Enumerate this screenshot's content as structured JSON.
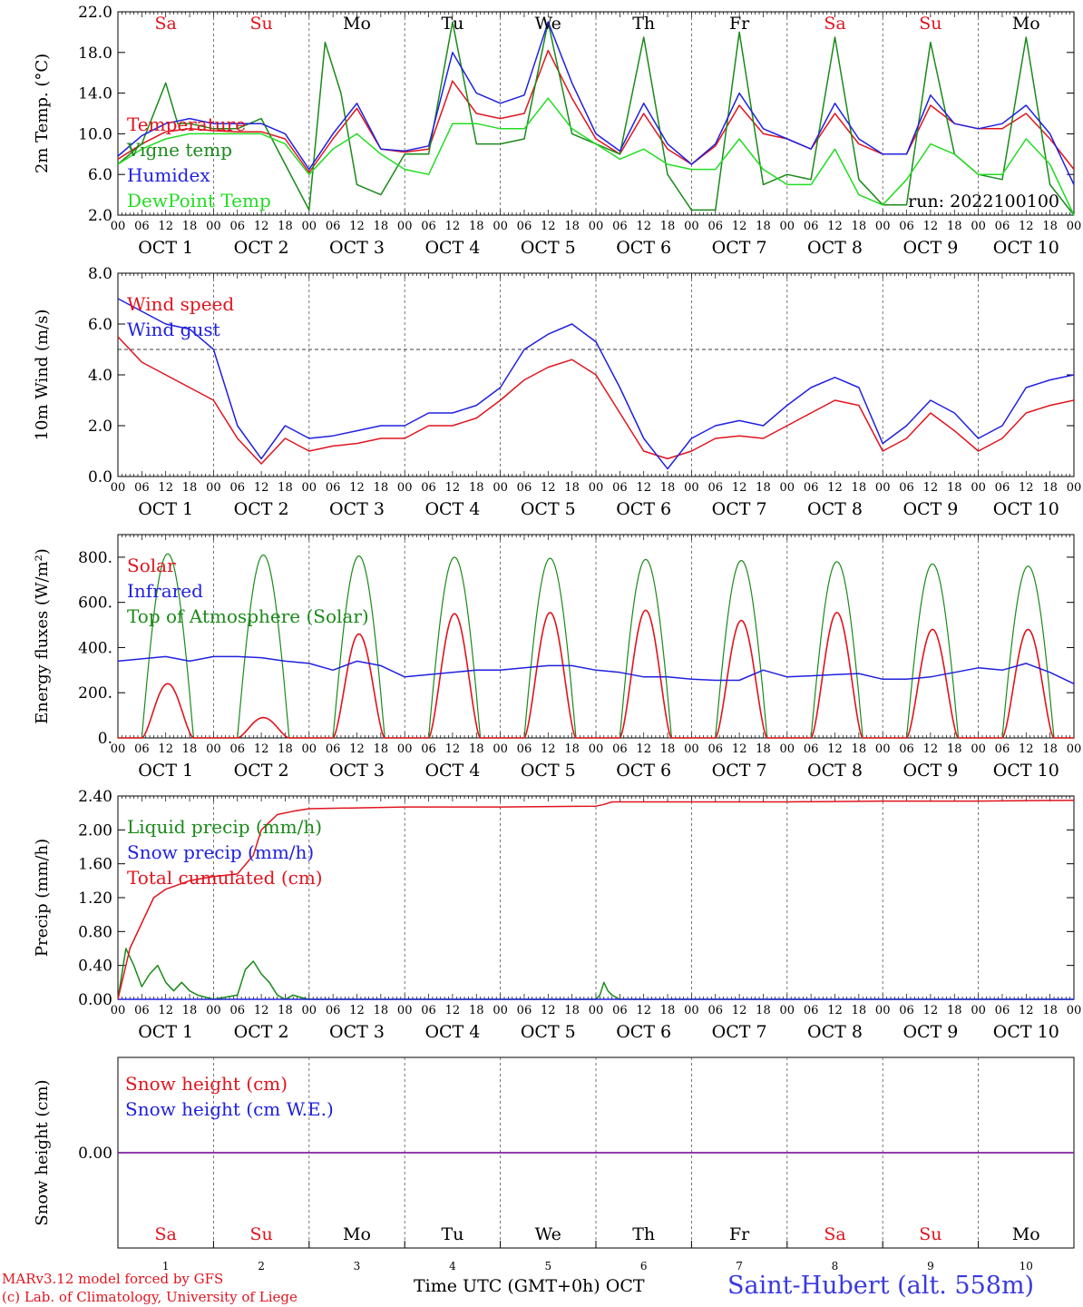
{
  "station_label": "Saint-Hubert (alt. 558m)",
  "run_label": "run: 2022100100",
  "credits": [
    "MARv3.12 model forced by GFS",
    "(c) Lab. of Climatology, University of Liege"
  ],
  "xaxis_title": "Time UTC (GMT+0h)",
  "month_label": "OCT",
  "colors": {
    "red": "#e0141e",
    "green": "#1a8a1a",
    "blue": "#2020e0",
    "lightgreen": "#22dd22",
    "purple": "#8020a0",
    "grid": "#555555"
  },
  "days": [
    {
      "num": "1",
      "date": "OCT  1",
      "dow": "Sa",
      "weekend": true
    },
    {
      "num": "2",
      "date": "OCT  2",
      "dow": "Su",
      "weekend": true
    },
    {
      "num": "3",
      "date": "OCT  3",
      "dow": "Mo",
      "weekend": false
    },
    {
      "num": "4",
      "date": "OCT  4",
      "dow": "Tu",
      "weekend": false
    },
    {
      "num": "5",
      "date": "OCT  5",
      "dow": "We",
      "weekend": false
    },
    {
      "num": "6",
      "date": "OCT  6",
      "dow": "Th",
      "weekend": false
    },
    {
      "num": "7",
      "date": "OCT  7",
      "dow": "Fr",
      "weekend": false
    },
    {
      "num": "8",
      "date": "OCT  8",
      "dow": "Sa",
      "weekend": true
    },
    {
      "num": "9",
      "date": "OCT  9",
      "dow": "Su",
      "weekend": true
    },
    {
      "num": "10",
      "date": "OCT 10",
      "dow": "Mo",
      "weekend": false
    }
  ],
  "hour_ticks": [
    "00",
    "06",
    "12",
    "18"
  ],
  "chart_data": [
    {
      "type": "line",
      "ylabel": "2m Temp. (°C)",
      "ylim": [
        2.0,
        22.0
      ],
      "yticks": [
        "2.0",
        "6.0",
        "10.0",
        "14.0",
        "18.0",
        "22.0"
      ],
      "x_unit": "hours since OCT 1 00 UTC",
      "series": [
        {
          "name": "Temperature",
          "color": "red",
          "x": [
            0,
            6,
            12,
            18,
            24,
            30,
            36,
            42,
            48,
            54,
            60,
            66,
            72,
            78,
            84,
            90,
            96,
            102,
            108,
            114,
            120,
            126,
            132,
            138,
            144,
            150,
            156,
            162,
            168,
            174,
            180,
            186,
            192,
            198,
            204,
            210,
            216,
            222,
            228,
            234,
            240
          ],
          "y": [
            7.5,
            9.0,
            10.2,
            10.5,
            10.3,
            10.2,
            10.2,
            9.5,
            6.2,
            9.5,
            12.5,
            8.5,
            8.2,
            8.5,
            15.2,
            12.0,
            11.5,
            12.0,
            18.2,
            13.5,
            9.5,
            8.0,
            12.0,
            8.5,
            7.0,
            8.8,
            12.8,
            10.0,
            9.5,
            8.5,
            12.0,
            9.0,
            8.0,
            8.0,
            12.8,
            11.0,
            10.5,
            10.5,
            12.0,
            9.5,
            6.5
          ]
        },
        {
          "name": "Vigne temp",
          "color": "green",
          "x": [
            0,
            6,
            10,
            12,
            15,
            18,
            24,
            30,
            36,
            42,
            48,
            52,
            56,
            60,
            66,
            72,
            78,
            84,
            90,
            96,
            102,
            108,
            114,
            120,
            126,
            132,
            138,
            144,
            150,
            156,
            162,
            168,
            174,
            180,
            186,
            192,
            198,
            204,
            210,
            216,
            222,
            228,
            234,
            240
          ],
          "y": [
            7.0,
            9.0,
            13.0,
            15.0,
            11.0,
            11.0,
            10.5,
            10.5,
            11.5,
            7.0,
            2.5,
            19.0,
            14.0,
            5.0,
            4.0,
            8.0,
            8.0,
            21.0,
            9.0,
            9.0,
            9.5,
            21.0,
            10.0,
            9.0,
            8.0,
            19.5,
            6.0,
            2.5,
            2.5,
            20.0,
            5.0,
            6.0,
            5.5,
            19.5,
            5.5,
            3.0,
            3.0,
            19.0,
            8.0,
            6.0,
            5.5,
            19.5,
            5.0,
            2.0
          ]
        },
        {
          "name": "Humidex",
          "color": "blue",
          "x": [
            0,
            6,
            12,
            18,
            24,
            30,
            36,
            42,
            48,
            54,
            60,
            66,
            72,
            78,
            84,
            90,
            96,
            102,
            108,
            114,
            120,
            126,
            132,
            138,
            144,
            150,
            156,
            162,
            168,
            174,
            180,
            186,
            192,
            198,
            204,
            210,
            216,
            222,
            228,
            234,
            240
          ],
          "y": [
            7.8,
            9.8,
            11.0,
            11.5,
            11.0,
            11.0,
            11.0,
            10.0,
            6.5,
            10.0,
            13.0,
            8.5,
            8.3,
            8.8,
            18.0,
            14.0,
            13.0,
            13.8,
            21.0,
            15.0,
            10.0,
            8.3,
            13.0,
            9.0,
            7.0,
            9.0,
            14.0,
            10.5,
            9.5,
            8.5,
            13.0,
            9.5,
            8.0,
            8.0,
            13.8,
            11.0,
            10.5,
            11.0,
            12.8,
            10.0,
            5.0
          ]
        },
        {
          "name": "DewPoint Temp",
          "color": "lightgreen",
          "x": [
            0,
            6,
            12,
            18,
            24,
            30,
            36,
            42,
            48,
            54,
            60,
            66,
            72,
            78,
            84,
            90,
            96,
            102,
            108,
            114,
            120,
            126,
            132,
            138,
            144,
            150,
            156,
            162,
            168,
            174,
            180,
            186,
            192,
            198,
            204,
            210,
            216,
            222,
            228,
            234,
            240
          ],
          "y": [
            7.0,
            8.5,
            9.5,
            10.0,
            10.0,
            10.0,
            10.0,
            9.0,
            6.0,
            8.5,
            10.0,
            8.0,
            6.5,
            6.0,
            11.0,
            11.0,
            10.5,
            10.5,
            13.5,
            10.5,
            9.0,
            7.5,
            8.5,
            7.0,
            6.5,
            6.5,
            9.5,
            6.5,
            5.0,
            5.0,
            8.5,
            4.0,
            3.0,
            5.5,
            9.0,
            8.0,
            6.0,
            6.0,
            9.5,
            7.0,
            2.0
          ]
        }
      ]
    },
    {
      "type": "line",
      "ylabel": "10m Wind (m/s)",
      "ylim": [
        0.0,
        8.0
      ],
      "yticks": [
        "0.0",
        "2.0",
        "4.0",
        "6.0",
        "8.0"
      ],
      "reference_line": 5.0,
      "series": [
        {
          "name": "Wind speed",
          "color": "red",
          "x": [
            0,
            6,
            12,
            18,
            24,
            30,
            36,
            42,
            48,
            54,
            60,
            66,
            72,
            78,
            84,
            90,
            96,
            102,
            108,
            114,
            120,
            126,
            132,
            138,
            144,
            150,
            156,
            162,
            168,
            174,
            180,
            186,
            192,
            198,
            204,
            210,
            216,
            222,
            228,
            234,
            240
          ],
          "y": [
            5.5,
            4.5,
            4.0,
            3.5,
            3.0,
            1.5,
            0.5,
            1.5,
            1.0,
            1.2,
            1.3,
            1.5,
            1.5,
            2.0,
            2.0,
            2.3,
            3.0,
            3.8,
            4.3,
            4.6,
            4.0,
            2.5,
            1.0,
            0.7,
            1.0,
            1.5,
            1.6,
            1.5,
            2.0,
            2.5,
            3.0,
            2.8,
            1.0,
            1.5,
            2.5,
            1.8,
            1.0,
            1.5,
            2.5,
            2.8,
            3.0
          ]
        },
        {
          "name": "Wind gust",
          "color": "blue",
          "x": [
            0,
            6,
            12,
            18,
            24,
            30,
            36,
            42,
            48,
            54,
            60,
            66,
            72,
            78,
            84,
            90,
            96,
            102,
            108,
            114,
            120,
            126,
            132,
            138,
            144,
            150,
            156,
            162,
            168,
            174,
            180,
            186,
            192,
            198,
            204,
            210,
            216,
            222,
            228,
            234,
            240
          ],
          "y": [
            7.0,
            6.5,
            6.0,
            5.8,
            5.0,
            2.0,
            0.7,
            2.0,
            1.5,
            1.6,
            1.8,
            2.0,
            2.0,
            2.5,
            2.5,
            2.8,
            3.5,
            5.0,
            5.6,
            6.0,
            5.3,
            3.5,
            1.5,
            0.3,
            1.5,
            2.0,
            2.2,
            2.0,
            2.8,
            3.5,
            3.9,
            3.5,
            1.3,
            2.0,
            3.0,
            2.5,
            1.5,
            2.0,
            3.5,
            3.8,
            4.0
          ]
        }
      ]
    },
    {
      "type": "line",
      "ylabel": "Energy fluxes (W/m²)",
      "ylim": [
        0,
        900
      ],
      "yticks": [
        "0.",
        "200.",
        "400.",
        "600.",
        "800."
      ],
      "diurnal_solar": {
        "sunrise_h": 6,
        "sunset_h": 19,
        "toa_peak": [
          815,
          810,
          805,
          800,
          795,
          790,
          785,
          780,
          770,
          760
        ],
        "solar_peak": [
          240,
          90,
          460,
          550,
          555,
          565,
          520,
          555,
          480,
          480
        ]
      },
      "series": [
        {
          "name": "Solar",
          "color": "red",
          "derived_from": "diurnal_solar.solar_peak"
        },
        {
          "name": "Infrared",
          "color": "blue",
          "x": [
            0,
            6,
            12,
            18,
            24,
            30,
            36,
            42,
            48,
            54,
            60,
            66,
            72,
            78,
            84,
            90,
            96,
            102,
            108,
            114,
            120,
            126,
            132,
            138,
            144,
            150,
            156,
            162,
            168,
            174,
            180,
            186,
            192,
            198,
            204,
            210,
            216,
            222,
            228,
            234,
            240
          ],
          "y": [
            340,
            350,
            360,
            340,
            360,
            360,
            355,
            340,
            330,
            300,
            340,
            320,
            270,
            280,
            290,
            300,
            300,
            310,
            320,
            320,
            300,
            290,
            270,
            270,
            260,
            255,
            255,
            300,
            270,
            275,
            280,
            285,
            260,
            260,
            270,
            290,
            310,
            300,
            330,
            290,
            240
          ]
        },
        {
          "name": "Top of Atmosphere (Solar)",
          "color": "green",
          "derived_from": "diurnal_solar.toa_peak"
        }
      ]
    },
    {
      "type": "line",
      "ylabel": "Precip (mm/h)",
      "ylim": [
        0.0,
        2.4
      ],
      "yticks": [
        "0.00",
        "0.40",
        "0.80",
        "1.20",
        "1.60",
        "2.00",
        "2.40"
      ],
      "series": [
        {
          "name": "Liquid precip (mm/h)",
          "color": "green",
          "x": [
            0,
            2,
            4,
            6,
            8,
            10,
            12,
            14,
            16,
            18,
            20,
            24,
            30,
            32,
            34,
            36,
            38,
            40,
            42,
            44,
            46,
            48,
            120,
            121,
            122,
            123,
            124,
            126,
            240
          ],
          "y": [
            0.0,
            0.6,
            0.4,
            0.15,
            0.3,
            0.4,
            0.2,
            0.1,
            0.2,
            0.1,
            0.05,
            0.0,
            0.05,
            0.35,
            0.45,
            0.3,
            0.2,
            0.05,
            0.0,
            0.05,
            0.02,
            0.0,
            0.0,
            0.05,
            0.2,
            0.1,
            0.05,
            0.0,
            0.0
          ]
        },
        {
          "name": "Snow precip (mm/h)",
          "color": "blue",
          "x": [
            0,
            240
          ],
          "y": [
            0.0,
            0.0
          ]
        },
        {
          "name": "Total cumulated (cm)",
          "color": "red",
          "x": [
            0,
            3,
            6,
            9,
            12,
            18,
            24,
            30,
            34,
            36,
            40,
            44,
            48,
            60,
            72,
            96,
            120,
            122,
            124,
            144,
            168,
            192,
            216,
            240
          ],
          "y": [
            0.0,
            0.6,
            0.9,
            1.2,
            1.3,
            1.4,
            1.45,
            1.48,
            1.7,
            2.0,
            2.18,
            2.22,
            2.25,
            2.26,
            2.27,
            2.27,
            2.28,
            2.3,
            2.33,
            2.33,
            2.33,
            2.34,
            2.34,
            2.35
          ]
        }
      ]
    },
    {
      "type": "line",
      "ylabel": "Snow height (cm)",
      "yticks": [
        "0.00"
      ],
      "series": [
        {
          "name": "Snow height (cm)",
          "color": "red",
          "x": [
            0,
            240
          ],
          "y": [
            0.0,
            0.0
          ]
        },
        {
          "name": "Snow height (cm W.E.)",
          "color": "blue",
          "x": [
            0,
            240
          ],
          "y": [
            0.0,
            0.0
          ]
        }
      ]
    }
  ]
}
